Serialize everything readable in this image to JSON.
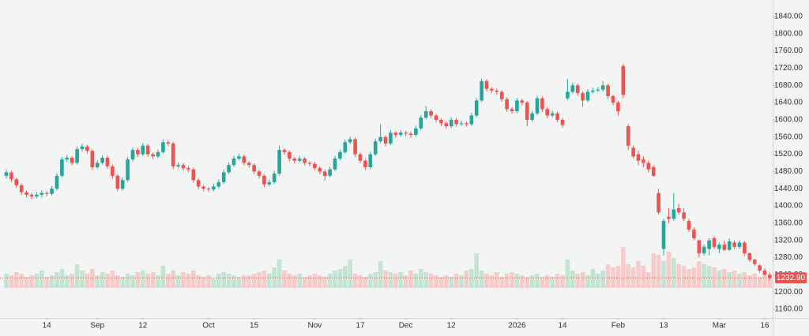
{
  "chart_data": {
    "type": "candlestick",
    "up_color": "#26a69a",
    "down_color": "#ef5350",
    "up_volume_color": "#c3e4d3",
    "down_volume_color": "#f6cccb",
    "ylim": [
      1140,
      1860
    ],
    "yticks": [
      {
        "value": 1160,
        "label": "1160.00"
      },
      {
        "value": 1200,
        "label": "1200.00"
      },
      {
        "value": 1240,
        "label": "1240.00"
      },
      {
        "value": 1280,
        "label": "1280.00"
      },
      {
        "value": 1320,
        "label": "1320.00"
      },
      {
        "value": 1360,
        "label": "1360.00"
      },
      {
        "value": 1400,
        "label": "1400.00"
      },
      {
        "value": 1440,
        "label": "1440.00"
      },
      {
        "value": 1480,
        "label": "1480.00"
      },
      {
        "value": 1520,
        "label": "1520.00"
      },
      {
        "value": 1560,
        "label": "1560.00"
      },
      {
        "value": 1600,
        "label": "1600.00"
      },
      {
        "value": 1640,
        "label": "1640.00"
      },
      {
        "value": 1680,
        "label": "1680.00"
      },
      {
        "value": 1720,
        "label": "1720.00"
      },
      {
        "value": 1760,
        "label": "1760.00"
      },
      {
        "value": 1800,
        "label": "1800.00"
      },
      {
        "value": 1840,
        "label": "1840.00"
      }
    ],
    "xticks": [
      {
        "value": 8,
        "label": "14"
      },
      {
        "value": 18,
        "label": "Sep"
      },
      {
        "value": 27,
        "label": "12"
      },
      {
        "value": 40,
        "label": "Oct"
      },
      {
        "value": 49,
        "label": "15"
      },
      {
        "value": 61,
        "label": "Nov"
      },
      {
        "value": 70,
        "label": "17"
      },
      {
        "value": 79,
        "label": "Dec"
      },
      {
        "value": 88,
        "label": "12"
      },
      {
        "value": 101,
        "label": "2026"
      },
      {
        "value": 110,
        "label": "14"
      },
      {
        "value": 121,
        "label": "Feb"
      },
      {
        "value": 130,
        "label": "13"
      },
      {
        "value": 141,
        "label": "Mar"
      },
      {
        "value": 150,
        "label": "16"
      }
    ],
    "last_price": {
      "value": 1232.9,
      "label": "1232.90"
    },
    "ohlc": [
      [
        1470,
        1484,
        1464,
        1478
      ],
      [
        1478,
        1482,
        1456,
        1462
      ],
      [
        1462,
        1466,
        1442,
        1448
      ],
      [
        1448,
        1452,
        1426,
        1432
      ],
      [
        1432,
        1436,
        1420,
        1426
      ],
      [
        1426,
        1430,
        1416,
        1422
      ],
      [
        1422,
        1432,
        1418,
        1426
      ],
      [
        1426,
        1436,
        1420,
        1430
      ],
      [
        1430,
        1434,
        1422,
        1428
      ],
      [
        1428,
        1446,
        1424,
        1440
      ],
      [
        1440,
        1476,
        1436,
        1470
      ],
      [
        1470,
        1514,
        1466,
        1508
      ],
      [
        1508,
        1518,
        1502,
        1512
      ],
      [
        1512,
        1516,
        1494,
        1500
      ],
      [
        1500,
        1538,
        1496,
        1532
      ],
      [
        1532,
        1544,
        1526,
        1538
      ],
      [
        1538,
        1542,
        1522,
        1528
      ],
      [
        1528,
        1532,
        1484,
        1490
      ],
      [
        1490,
        1506,
        1486,
        1500
      ],
      [
        1500,
        1518,
        1496,
        1512
      ],
      [
        1512,
        1516,
        1486,
        1492
      ],
      [
        1492,
        1496,
        1464,
        1470
      ],
      [
        1470,
        1474,
        1434,
        1440
      ],
      [
        1440,
        1466,
        1436,
        1460
      ],
      [
        1460,
        1514,
        1456,
        1508
      ],
      [
        1508,
        1536,
        1504,
        1530
      ],
      [
        1530,
        1534,
        1514,
        1520
      ],
      [
        1520,
        1546,
        1516,
        1540
      ],
      [
        1540,
        1544,
        1514,
        1520
      ],
      [
        1520,
        1524,
        1509,
        1515
      ],
      [
        1515,
        1531,
        1511,
        1525
      ],
      [
        1525,
        1554,
        1521,
        1548
      ],
      [
        1548,
        1552,
        1539,
        1545
      ],
      [
        1545,
        1549,
        1486,
        1492
      ],
      [
        1492,
        1501,
        1488,
        1495
      ],
      [
        1495,
        1499,
        1482,
        1488
      ],
      [
        1488,
        1492,
        1479,
        1485
      ],
      [
        1485,
        1489,
        1454,
        1460
      ],
      [
        1460,
        1464,
        1439,
        1445
      ],
      [
        1445,
        1449,
        1434,
        1440
      ],
      [
        1440,
        1444,
        1432,
        1438
      ],
      [
        1438,
        1451,
        1434,
        1445
      ],
      [
        1445,
        1461,
        1441,
        1455
      ],
      [
        1455,
        1484,
        1451,
        1478
      ],
      [
        1478,
        1501,
        1474,
        1495
      ],
      [
        1495,
        1516,
        1491,
        1510
      ],
      [
        1510,
        1521,
        1506,
        1515
      ],
      [
        1515,
        1519,
        1494,
        1500
      ],
      [
        1500,
        1504,
        1489,
        1495
      ],
      [
        1495,
        1499,
        1474,
        1480
      ],
      [
        1480,
        1484,
        1464,
        1470
      ],
      [
        1470,
        1474,
        1444,
        1450
      ],
      [
        1450,
        1461,
        1446,
        1455
      ],
      [
        1455,
        1481,
        1451,
        1475
      ],
      [
        1475,
        1540,
        1471,
        1530
      ],
      [
        1530,
        1534,
        1519,
        1525
      ],
      [
        1525,
        1529,
        1504,
        1510
      ],
      [
        1510,
        1514,
        1499,
        1505
      ],
      [
        1505,
        1516,
        1501,
        1510
      ],
      [
        1510,
        1514,
        1494,
        1500
      ],
      [
        1500,
        1504,
        1492,
        1498
      ],
      [
        1498,
        1502,
        1482,
        1488
      ],
      [
        1488,
        1492,
        1474,
        1480
      ],
      [
        1480,
        1484,
        1458,
        1470
      ],
      [
        1470,
        1491,
        1466,
        1485
      ],
      [
        1485,
        1516,
        1481,
        1510
      ],
      [
        1510,
        1531,
        1506,
        1525
      ],
      [
        1525,
        1554,
        1521,
        1548
      ],
      [
        1548,
        1561,
        1544,
        1555
      ],
      [
        1555,
        1559,
        1514,
        1520
      ],
      [
        1520,
        1524,
        1499,
        1505
      ],
      [
        1505,
        1509,
        1484,
        1490
      ],
      [
        1490,
        1526,
        1486,
        1520
      ],
      [
        1520,
        1556,
        1516,
        1550
      ],
      [
        1550,
        1590,
        1546,
        1560
      ],
      [
        1560,
        1564,
        1539,
        1545
      ],
      [
        1545,
        1576,
        1541,
        1570
      ],
      [
        1570,
        1574,
        1559,
        1565
      ],
      [
        1565,
        1576,
        1561,
        1570
      ],
      [
        1570,
        1574,
        1562,
        1568
      ],
      [
        1568,
        1572,
        1559,
        1565
      ],
      [
        1565,
        1586,
        1561,
        1580
      ],
      [
        1580,
        1611,
        1576,
        1605
      ],
      [
        1605,
        1632,
        1601,
        1620
      ],
      [
        1620,
        1624,
        1604,
        1610
      ],
      [
        1610,
        1614,
        1594,
        1600
      ],
      [
        1600,
        1604,
        1586,
        1592
      ],
      [
        1592,
        1596,
        1579,
        1585
      ],
      [
        1585,
        1606,
        1581,
        1600
      ],
      [
        1600,
        1604,
        1584,
        1590
      ],
      [
        1590,
        1598,
        1586,
        1592
      ],
      [
        1592,
        1596,
        1584,
        1590
      ],
      [
        1590,
        1616,
        1586,
        1610
      ],
      [
        1610,
        1651,
        1606,
        1645
      ],
      [
        1645,
        1696,
        1641,
        1690
      ],
      [
        1690,
        1694,
        1666,
        1672
      ],
      [
        1672,
        1676,
        1662,
        1668
      ],
      [
        1668,
        1672,
        1659,
        1665
      ],
      [
        1665,
        1669,
        1642,
        1648
      ],
      [
        1648,
        1652,
        1619,
        1625
      ],
      [
        1625,
        1629,
        1614,
        1620
      ],
      [
        1620,
        1651,
        1616,
        1645
      ],
      [
        1645,
        1649,
        1634,
        1640
      ],
      [
        1640,
        1644,
        1585,
        1600
      ],
      [
        1600,
        1621,
        1596,
        1615
      ],
      [
        1615,
        1656,
        1611,
        1650
      ],
      [
        1650,
        1654,
        1619,
        1625
      ],
      [
        1625,
        1629,
        1604,
        1610
      ],
      [
        1610,
        1621,
        1606,
        1615
      ],
      [
        1615,
        1619,
        1594,
        1600
      ],
      [
        1600,
        1604,
        1582,
        1588
      ],
      [
        1650,
        1695,
        1646,
        1665
      ],
      [
        1665,
        1686,
        1661,
        1680
      ],
      [
        1680,
        1684,
        1656,
        1662
      ],
      [
        1662,
        1666,
        1630,
        1645
      ],
      [
        1645,
        1671,
        1641,
        1665
      ],
      [
        1665,
        1674,
        1661,
        1668
      ],
      [
        1668,
        1676,
        1664,
        1670
      ],
      [
        1670,
        1690,
        1666,
        1680
      ],
      [
        1680,
        1684,
        1649,
        1655
      ],
      [
        1655,
        1659,
        1634,
        1640
      ],
      [
        1640,
        1644,
        1610,
        1620
      ],
      [
        1725,
        1730,
        1650,
        1658
      ],
      [
        1585,
        1590,
        1530,
        1540
      ],
      [
        1535,
        1540,
        1510,
        1515
      ],
      [
        1520,
        1528,
        1495,
        1505
      ],
      [
        1508,
        1515,
        1490,
        1500
      ],
      [
        1500,
        1505,
        1478,
        1485
      ],
      [
        1490,
        1495,
        1468,
        1470
      ],
      [
        1430,
        1440,
        1380,
        1385
      ],
      [
        1300,
        1370,
        1285,
        1365
      ],
      [
        1375,
        1395,
        1360,
        1370
      ],
      [
        1370,
        1430,
        1365,
        1392
      ],
      [
        1395,
        1405,
        1380,
        1385
      ],
      [
        1385,
        1395,
        1365,
        1370
      ],
      [
        1365,
        1370,
        1340,
        1345
      ],
      [
        1345,
        1350,
        1320,
        1325
      ],
      [
        1320,
        1322,
        1280,
        1290
      ],
      [
        1290,
        1310,
        1285,
        1305
      ],
      [
        1300,
        1325,
        1285,
        1320
      ],
      [
        1325,
        1330,
        1300,
        1305
      ],
      [
        1300,
        1315,
        1290,
        1310
      ],
      [
        1310,
        1320,
        1295,
        1298
      ],
      [
        1298,
        1325,
        1295,
        1318
      ],
      [
        1315,
        1320,
        1300,
        1305
      ],
      [
        1305,
        1320,
        1300,
        1315
      ],
      [
        1315,
        1318,
        1285,
        1290
      ],
      [
        1290,
        1292,
        1270,
        1275
      ],
      [
        1275,
        1278,
        1260,
        1265
      ],
      [
        1262,
        1265,
        1245,
        1250
      ],
      [
        1250,
        1255,
        1238,
        1240
      ],
      [
        1240,
        1245,
        1228,
        1232.9
      ]
    ],
    "volume": [
      18,
      16,
      20,
      18,
      14,
      16,
      18,
      22,
      14,
      16,
      20,
      24,
      16,
      18,
      30,
      22,
      18,
      24,
      16,
      20,
      18,
      22,
      16,
      14,
      18,
      16,
      20,
      22,
      18,
      20,
      16,
      28,
      18,
      22,
      16,
      20,
      18,
      22,
      16,
      14,
      16,
      12,
      18,
      20,
      18,
      16,
      14,
      16,
      16,
      18,
      20,
      22,
      18,
      26,
      36,
      22,
      18,
      16,
      18,
      14,
      16,
      18,
      16,
      14,
      18,
      22,
      24,
      28,
      36,
      18,
      16,
      14,
      18,
      20,
      34,
      22,
      20,
      18,
      20,
      16,
      22,
      18,
      24,
      20,
      18,
      16,
      14,
      16,
      14,
      18,
      16,
      22,
      24,
      44,
      22,
      18,
      16,
      20,
      14,
      18,
      20,
      18,
      16,
      14,
      16,
      18,
      14,
      16,
      14,
      18,
      16,
      36,
      22,
      18,
      20,
      16,
      24,
      18,
      22,
      30,
      26,
      28,
      52,
      30,
      26,
      34,
      28,
      20,
      44,
      42,
      34,
      46,
      38,
      30,
      28,
      24,
      26,
      34,
      30,
      28,
      26,
      22,
      24,
      20,
      22,
      18,
      20,
      16,
      18,
      14,
      16,
      12
    ]
  }
}
